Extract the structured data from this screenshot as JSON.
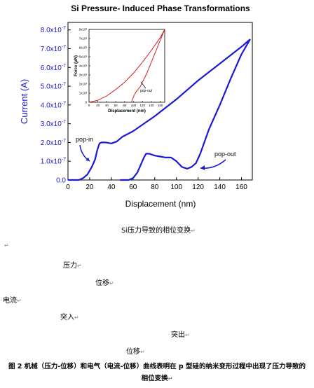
{
  "chart_data": [
    {
      "type": "line",
      "title": "Si Pressure- Induced Phase Transformations",
      "xlabel": "Displacement (nm)",
      "ylabel": "Current (A)",
      "xlim": [
        0,
        170
      ],
      "ylim": [
        0,
        8.4e-07
      ],
      "xticks": [
        "0",
        "20",
        "40",
        "60",
        "80",
        "100",
        "120",
        "140",
        "160"
      ],
      "yticks": [
        "0.0",
        "1.0x10-7",
        "2.0x10-7",
        "3.0x10-7",
        "4.0x10-7",
        "5.0x10-7",
        "6.0x10-7",
        "7.0x10-7",
        "8.0x10-7"
      ],
      "color": "#1a1ad6",
      "series": [
        {
          "name": "",
          "x": [
            0,
            10,
            14,
            18,
            22,
            25,
            27,
            29,
            31,
            35,
            40,
            45,
            50,
            60,
            80,
            100,
            120,
            140,
            160,
            168
          ],
          "y": [
            0,
            0,
            1e-08,
            3e-08,
            7e-08,
            1.1e-07,
            1.6e-07,
            1.95e-07,
            2e-07,
            2e-07,
            1.95e-07,
            2.05e-07,
            2.3e-07,
            2.6e-07,
            3.4e-07,
            4.3e-07,
            5.3e-07,
            6.2e-07,
            7.1e-07,
            7.5e-07
          ]
        },
        {
          "name": "",
          "x": [
            168,
            160,
            150,
            140,
            130,
            122,
            118,
            114,
            110,
            105,
            100,
            95,
            90,
            85,
            80,
            75,
            72,
            70,
            67,
            64,
            60,
            56,
            52,
            48
          ],
          "y": [
            7.5e-07,
            6.7e-07,
            5.4e-07,
            4e-07,
            2.7e-07,
            1.4e-07,
            9e-08,
            7e-08,
            6e-08,
            7e-08,
            1e-07,
            1.2e-07,
            1.2e-07,
            1.25e-07,
            1.3e-07,
            1.4e-07,
            1.4e-07,
            1.2e-07,
            8e-08,
            4e-08,
            1e-08,
            0,
            0,
            0
          ]
        }
      ],
      "annotations": [
        {
          "text": "pop-in",
          "x": 12,
          "y": 2.25e-07
        },
        {
          "text": "pop-out",
          "x": 124,
          "y": 1.3e-07
        }
      ]
    },
    {
      "type": "line",
      "title": "",
      "xlabel": "Displacement (nm)",
      "ylabel": "Force (μN)",
      "xlim": [
        0,
        170
      ],
      "ylim": [
        0,
        8000.0
      ],
      "xticks": [
        "0",
        "20",
        "40",
        "60",
        "80",
        "100",
        "120",
        "140",
        "160"
      ],
      "yticks": [
        "0",
        "1x10³",
        "2x10³",
        "3x10³",
        "4x10³",
        "5x10³",
        "6x10³",
        "7x10³",
        "8x10³"
      ],
      "color": "#d42020",
      "series": [
        {
          "name": "",
          "x": [
            0,
            20,
            40,
            60,
            80,
            100,
            120,
            140,
            160,
            170
          ],
          "y": [
            0,
            220,
            700,
            1400,
            2200,
            3200,
            4400,
            5700,
            7100,
            8000
          ]
        },
        {
          "name": "",
          "x": [
            170,
            160,
            150,
            140,
            130,
            120,
            115,
            112,
            110,
            105,
            100,
            95
          ],
          "y": [
            8000,
            6800,
            5600,
            4400,
            3200,
            2200,
            1700,
            1550,
            1400,
            1100,
            600,
            0
          ]
        }
      ],
      "annotations": [
        {
          "text": "pop-out",
          "x": 140,
          "y": 700
        }
      ]
    }
  ],
  "doc": {
    "subtitle": "Si压力导致的相位变换",
    "lbl_force": "压力",
    "lbl_disp1": "位移",
    "lbl_current": "电流",
    "lbl_popin": "突入",
    "lbl_popout": "突出",
    "lbl_disp2": "位移",
    "caption_line1": "图 2 机械（压力-位移）和电气（电流-位移）曲线表明在 p 型硅的纳米变形过程中出现了压力导致的",
    "caption_line2": "相位变换"
  }
}
